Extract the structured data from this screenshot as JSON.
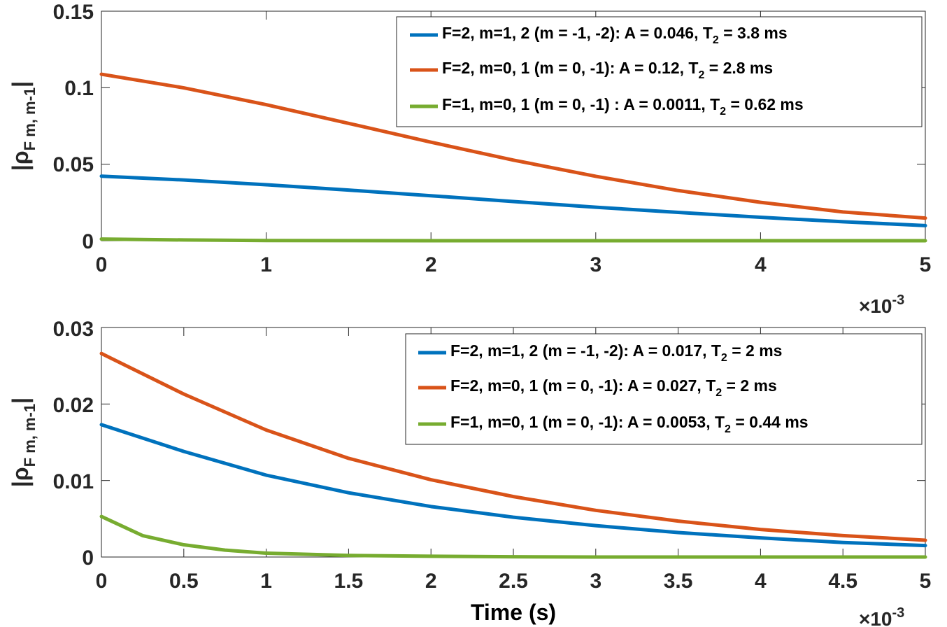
{
  "chart_data": [
    {
      "type": "line",
      "ylabel": {
        "prefix": "|ρ",
        "sub": "F m, m-1",
        "suffix": "|"
      },
      "xlim": [
        0,
        0.005
      ],
      "ylim": [
        0,
        0.15
      ],
      "x_ticks": [
        0,
        0.001,
        0.002,
        0.003,
        0.004,
        0.005
      ],
      "x_tick_labels": [
        "0",
        "1",
        "2",
        "3",
        "4",
        "5"
      ],
      "y_ticks": [
        0,
        0.05,
        0.1,
        0.15
      ],
      "y_tick_labels": [
        "0",
        "0.05",
        "0.1",
        "0.15"
      ],
      "x_exponent": {
        "base": "×10",
        "power": "-3"
      },
      "legend_position": "top-right",
      "series": [
        {
          "name": "F=2, m=1, 2 (m = -1, -2)",
          "A_label": "0.046",
          "T2_label": "3.8 ms",
          "color": "#0072BD",
          "legend_text": {
            "pre": "F=2, m=1, 2 (m = -1, -2): A = 0.046, T",
            "sub": "2",
            "post": " = 3.8 ms"
          },
          "x": [
            0,
            0.0005,
            0.001,
            0.0015,
            0.002,
            0.0025,
            0.003,
            0.0035,
            0.004,
            0.0045,
            0.005
          ],
          "y": [
            0.0422,
            0.0397,
            0.0366,
            0.0331,
            0.0294,
            0.0256,
            0.0219,
            0.0185,
            0.0153,
            0.0124,
            0.0099
          ]
        },
        {
          "name": "F=2, m=0, 1 (m = 0, -1)",
          "A_label": "0.12",
          "T2_label": "2.8 ms",
          "color": "#D95319",
          "legend_text": {
            "pre": "F=2, m=0, 1 (m = 0, -1): A = 0.12, T",
            "sub": "2",
            "post": " = 2.8 ms"
          },
          "x": [
            0,
            0.0005,
            0.001,
            0.0015,
            0.002,
            0.0025,
            0.003,
            0.0035,
            0.004,
            0.0045,
            0.005
          ],
          "y": [
            0.1088,
            0.0999,
            0.0889,
            0.0767,
            0.0644,
            0.0527,
            0.0421,
            0.0328,
            0.0251,
            0.0188,
            0.0148
          ]
        },
        {
          "name": "F=1, m=0, 1 (m = 0, -1)",
          "A_label": "0.0011",
          "T2_label": "0.62 ms",
          "color": "#77AC30",
          "legend_text": {
            "pre": "F=1, m=0, 1 (m = 0, -1) : A = 0.0011, T",
            "sub": "2",
            "post": " = 0.62 ms"
          },
          "x": [
            0,
            0.0005,
            0.001,
            0.0015,
            0.002,
            0.0025,
            0.003,
            0.0035,
            0.004,
            0.0045,
            0.005
          ],
          "y": [
            0.0011,
            0.0005,
            0.0001,
            3e-05,
            0.0,
            0.0,
            0.0,
            0.0,
            0.0,
            0.0,
            0.0
          ]
        }
      ]
    },
    {
      "type": "line",
      "ylabel": {
        "prefix": "|ρ",
        "sub": "F m, m-1",
        "suffix": "|"
      },
      "xlabel": "Time (s)",
      "xlim": [
        0,
        0.005
      ],
      "ylim": [
        0,
        0.03
      ],
      "x_ticks": [
        0,
        0.0005,
        0.001,
        0.0015,
        0.002,
        0.0025,
        0.003,
        0.0035,
        0.004,
        0.0045,
        0.005
      ],
      "x_tick_labels": [
        "0",
        "0.5",
        "1",
        "1.5",
        "2",
        "2.5",
        "3",
        "3.5",
        "4",
        "4.5",
        "5"
      ],
      "y_ticks": [
        0,
        0.01,
        0.02,
        0.03
      ],
      "y_tick_labels": [
        "0",
        "0.01",
        "0.02",
        "0.03"
      ],
      "x_exponent": {
        "base": "×10",
        "power": "-3"
      },
      "legend_position": "top-right",
      "series": [
        {
          "name": "F=2, m=1, 2 (m = -1, -2)",
          "A_label": "0.017",
          "T2_label": "2 ms",
          "color": "#0072BD",
          "legend_text": {
            "pre": "F=2, m=1, 2 (m = -1, -2): A = 0.017, T",
            "sub": "2",
            "post": " = 2 ms"
          },
          "x": [
            0,
            0.0005,
            0.001,
            0.0015,
            0.002,
            0.0025,
            0.003,
            0.0035,
            0.004,
            0.0045,
            0.005
          ],
          "y": [
            0.0173,
            0.0138,
            0.0107,
            0.0084,
            0.0066,
            0.0052,
            0.0041,
            0.0032,
            0.0025,
            0.0019,
            0.0015
          ]
        },
        {
          "name": "F=2, m=0, 1 (m = 0, -1)",
          "A_label": "0.027",
          "T2_label": "2 ms",
          "color": "#D95319",
          "legend_text": {
            "pre": "F=2, m=0, 1 (m = 0, -1): A = 0.027, T",
            "sub": "2",
            "post": " = 2 ms"
          },
          "x": [
            0,
            0.0005,
            0.001,
            0.0015,
            0.002,
            0.0025,
            0.003,
            0.0035,
            0.004,
            0.0045,
            0.005
          ],
          "y": [
            0.0266,
            0.0213,
            0.0166,
            0.0129,
            0.0101,
            0.0079,
            0.0061,
            0.0047,
            0.0036,
            0.0028,
            0.0022
          ]
        },
        {
          "name": "F=1, m=0, 1 (m = 0, -1)",
          "A_label": "0.0053",
          "T2_label": "0.44 ms",
          "color": "#77AC30",
          "legend_text": {
            "pre": "F=1, m=0, 1 (m = 0, -1): A = 0.0053, T",
            "sub": "2",
            "post": " = 0.44 ms"
          },
          "x": [
            0,
            0.00025,
            0.0005,
            0.00075,
            0.001,
            0.0015,
            0.002,
            0.0025,
            0.003,
            0.0035,
            0.004,
            0.0045,
            0.005
          ],
          "y": [
            0.0053,
            0.0028,
            0.0016,
            0.0009,
            0.0005,
            0.0002,
            0.0001,
            3e-05,
            0.0,
            0.0,
            0.0,
            0.0,
            0.0
          ]
        }
      ]
    }
  ]
}
